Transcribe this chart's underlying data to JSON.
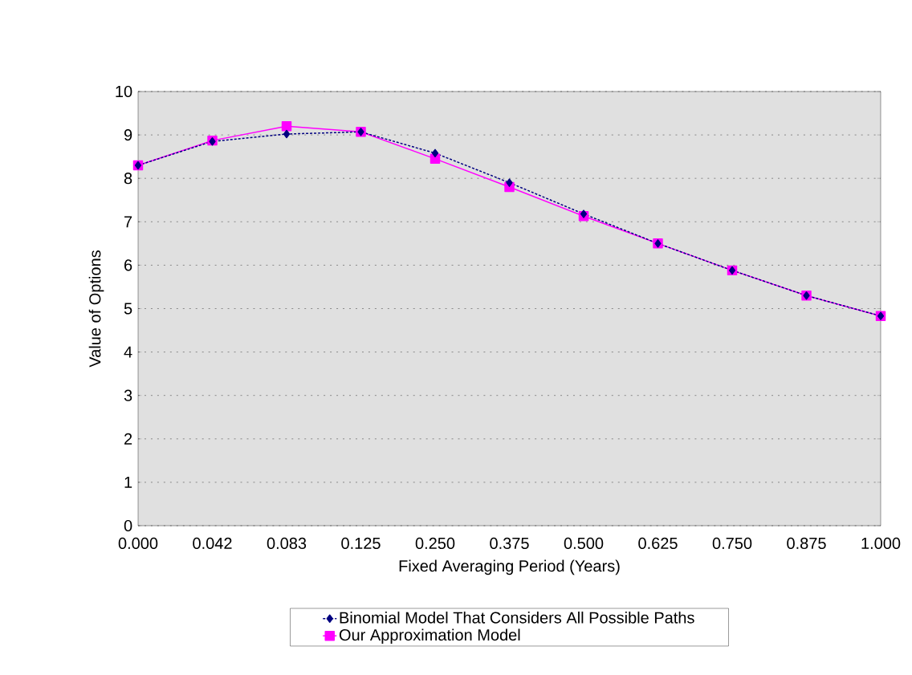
{
  "chart_data": {
    "type": "line",
    "xlabel": "Fixed Averaging Period (Years)",
    "ylabel": "Value of Options",
    "categories": [
      "0.000",
      "0.042",
      "0.083",
      "0.125",
      "0.250",
      "0.375",
      "0.500",
      "0.625",
      "0.750",
      "0.875",
      "1.000"
    ],
    "series": [
      {
        "name": "Binomial Model That Considers All Possible Paths",
        "color": "#000080",
        "marker": "diamond",
        "line_style": "dotted",
        "values": [
          8.3,
          8.85,
          9.02,
          9.07,
          8.58,
          7.9,
          7.18,
          6.5,
          5.88,
          5.3,
          4.83
        ]
      },
      {
        "name": "Our Approximation Model",
        "color": "#ff00ff",
        "marker": "square",
        "line_style": "solid",
        "values": [
          8.3,
          8.87,
          9.2,
          9.07,
          8.45,
          7.8,
          7.13,
          6.5,
          5.88,
          5.3,
          4.83
        ]
      }
    ],
    "ylim": [
      0,
      10
    ],
    "yticks": [
      0,
      1,
      2,
      3,
      4,
      5,
      6,
      7,
      8,
      9,
      10
    ],
    "grid": "y",
    "legend": "bottom"
  }
}
